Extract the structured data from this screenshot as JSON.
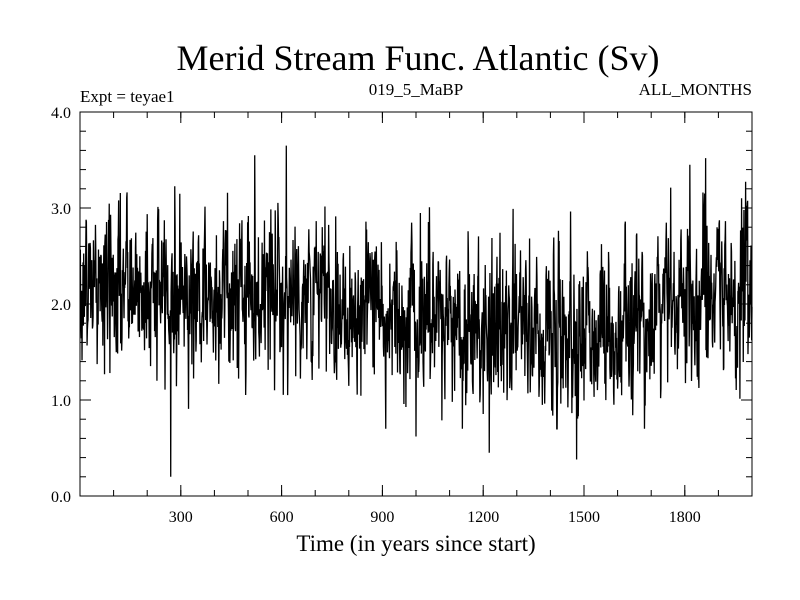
{
  "chart_data": {
    "type": "line",
    "title": "Merid Stream Func. Atlantic (Sv)",
    "subtitle_left": "Expt = teyae1",
    "subtitle_center": "019_5_MaBP",
    "subtitle_right": "ALL_MONTHS",
    "xlabel": "Time (in years since start)",
    "ylabel": "",
    "xlim": [
      0,
      2000
    ],
    "ylim": [
      0.0,
      4.0
    ],
    "x_ticks": [
      300,
      600,
      900,
      1200,
      1500,
      1800
    ],
    "x_tick_labels": [
      "300",
      "600",
      "900",
      "1200",
      "1500",
      "1800"
    ],
    "y_ticks": [
      0.0,
      1.0,
      2.0,
      3.0,
      4.0
    ],
    "y_tick_labels": [
      "0.0",
      "1.0",
      "2.0",
      "3.0",
      "4.0"
    ],
    "grid": false,
    "series": [
      {
        "name": "Merid Stream Func. Atlantic",
        "x_start": 1,
        "x_step": 1,
        "n_points": 2000,
        "mean_profile": [
          {
            "x": 0,
            "mean": 2.2
          },
          {
            "x": 200,
            "mean": 2.15
          },
          {
            "x": 400,
            "mean": 2.1
          },
          {
            "x": 600,
            "mean": 2.15
          },
          {
            "x": 800,
            "mean": 2.0
          },
          {
            "x": 1000,
            "mean": 1.9
          },
          {
            "x": 1200,
            "mean": 1.75
          },
          {
            "x": 1400,
            "mean": 1.75
          },
          {
            "x": 1600,
            "mean": 1.7
          },
          {
            "x": 1800,
            "mean": 2.1
          },
          {
            "x": 2000,
            "mean": 2.0
          }
        ],
        "std_dev": 0.42,
        "extremes": [
          {
            "x": 270,
            "y": 0.2
          },
          {
            "x": 614,
            "y": 3.65
          },
          {
            "x": 520,
            "y": 3.55
          },
          {
            "x": 1478,
            "y": 0.38
          },
          {
            "x": 1862,
            "y": 3.52
          },
          {
            "x": 1218,
            "y": 0.45
          },
          {
            "x": 1000,
            "y": 0.62
          },
          {
            "x": 1815,
            "y": 3.45
          }
        ]
      }
    ]
  }
}
